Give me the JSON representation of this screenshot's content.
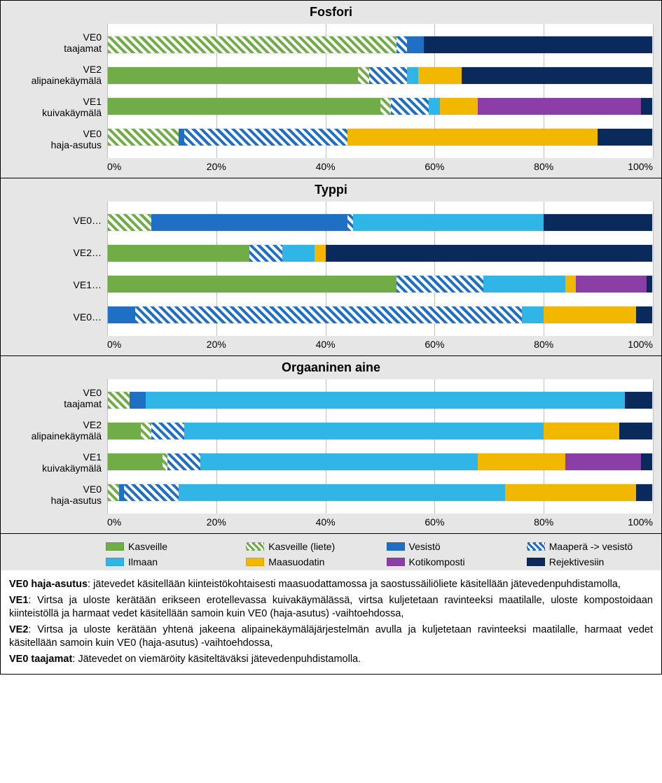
{
  "colors": {
    "kasveille": "#70ad47",
    "kasveille_liete": "hatch-green",
    "vesisto": "#1f6fc4",
    "maapera_vesisto": "hatch-blue",
    "ilmaan": "#2fb5e6",
    "maasuodatin": "#f2b800",
    "kotikomposti": "#8b3fa6",
    "rejektivesiin": "#0a2a5c",
    "panel_bg": "#e6e6e6",
    "grid": "#bfbfbf"
  },
  "axis": {
    "ticks": [
      "0%",
      "20%",
      "40%",
      "60%",
      "80%",
      "100%"
    ]
  },
  "legend": [
    {
      "key": "kasveille",
      "label": "Kasveille"
    },
    {
      "key": "kasveille_liete",
      "label": "Kasveille (liete)"
    },
    {
      "key": "vesisto",
      "label": "Vesistö"
    },
    {
      "key": "maapera_vesisto",
      "label": "Maaperä -> vesistö"
    },
    {
      "key": "ilmaan",
      "label": "Ilmaan"
    },
    {
      "key": "maasuodatin",
      "label": "Maasuodatin"
    },
    {
      "key": "kotikomposti",
      "label": "Kotikomposti"
    },
    {
      "key": "rejektivesiin",
      "label": "Rejektivesiin"
    }
  ],
  "charts": [
    {
      "title": "Fosfori",
      "rows": [
        {
          "label": [
            "VE0",
            "taajamat"
          ],
          "segs": [
            {
              "k": "kasveille_liete",
              "v": 53
            },
            {
              "k": "maapera_vesisto",
              "v": 2
            },
            {
              "k": "vesisto",
              "v": 3
            },
            {
              "k": "rejektivesiin",
              "v": 42
            }
          ]
        },
        {
          "label": [
            "VE2",
            "alipainekäymälä"
          ],
          "segs": [
            {
              "k": "kasveille",
              "v": 46
            },
            {
              "k": "kasveille_liete",
              "v": 2
            },
            {
              "k": "maapera_vesisto",
              "v": 7
            },
            {
              "k": "ilmaan",
              "v": 2
            },
            {
              "k": "maasuodatin",
              "v": 8
            },
            {
              "k": "rejektivesiin",
              "v": 35
            }
          ]
        },
        {
          "label": [
            "VE1",
            "kuivakäymälä"
          ],
          "segs": [
            {
              "k": "kasveille",
              "v": 50
            },
            {
              "k": "kasveille_liete",
              "v": 2
            },
            {
              "k": "maapera_vesisto",
              "v": 7
            },
            {
              "k": "ilmaan",
              "v": 2
            },
            {
              "k": "maasuodatin",
              "v": 7
            },
            {
              "k": "kotikomposti",
              "v": 30
            },
            {
              "k": "rejektivesiin",
              "v": 2
            }
          ]
        },
        {
          "label": [
            "VE0",
            "haja-asutus"
          ],
          "segs": [
            {
              "k": "kasveille_liete",
              "v": 13
            },
            {
              "k": "vesisto",
              "v": 1
            },
            {
              "k": "maapera_vesisto",
              "v": 30
            },
            {
              "k": "maasuodatin",
              "v": 46
            },
            {
              "k": "rejektivesiin",
              "v": 10
            }
          ]
        }
      ]
    },
    {
      "title": "Typpi",
      "rows": [
        {
          "label": [
            "VE0…"
          ],
          "segs": [
            {
              "k": "kasveille_liete",
              "v": 8
            },
            {
              "k": "vesisto",
              "v": 36
            },
            {
              "k": "maapera_vesisto",
              "v": 1
            },
            {
              "k": "ilmaan",
              "v": 35
            },
            {
              "k": "rejektivesiin",
              "v": 20
            }
          ]
        },
        {
          "label": [
            "VE2…"
          ],
          "segs": [
            {
              "k": "kasveille",
              "v": 26
            },
            {
              "k": "maapera_vesisto",
              "v": 6
            },
            {
              "k": "ilmaan",
              "v": 6
            },
            {
              "k": "maasuodatin",
              "v": 2
            },
            {
              "k": "rejektivesiin",
              "v": 60
            }
          ]
        },
        {
          "label": [
            "VE1…"
          ],
          "segs": [
            {
              "k": "kasveille",
              "v": 53
            },
            {
              "k": "maapera_vesisto",
              "v": 16
            },
            {
              "k": "ilmaan",
              "v": 15
            },
            {
              "k": "maasuodatin",
              "v": 2
            },
            {
              "k": "kotikomposti",
              "v": 13
            },
            {
              "k": "rejektivesiin",
              "v": 1
            }
          ]
        },
        {
          "label": [
            "VE0…"
          ],
          "segs": [
            {
              "k": "vesisto",
              "v": 5
            },
            {
              "k": "maapera_vesisto",
              "v": 71
            },
            {
              "k": "ilmaan",
              "v": 4
            },
            {
              "k": "maasuodatin",
              "v": 17
            },
            {
              "k": "rejektivesiin",
              "v": 3
            }
          ]
        }
      ]
    },
    {
      "title": "Orgaaninen aine",
      "rows": [
        {
          "label": [
            "VE0",
            "taajamat"
          ],
          "segs": [
            {
              "k": "kasveille_liete",
              "v": 4
            },
            {
              "k": "vesisto",
              "v": 3
            },
            {
              "k": "ilmaan",
              "v": 88
            },
            {
              "k": "rejektivesiin",
              "v": 5
            }
          ]
        },
        {
          "label": [
            "VE2",
            "alipainekäymälä"
          ],
          "segs": [
            {
              "k": "kasveille",
              "v": 6
            },
            {
              "k": "kasveille_liete",
              "v": 2
            },
            {
              "k": "maapera_vesisto",
              "v": 6
            },
            {
              "k": "ilmaan",
              "v": 66
            },
            {
              "k": "maasuodatin",
              "v": 14
            },
            {
              "k": "rejektivesiin",
              "v": 6
            }
          ]
        },
        {
          "label": [
            "VE1",
            "kuivakäymälä"
          ],
          "segs": [
            {
              "k": "kasveille",
              "v": 10
            },
            {
              "k": "kasveille_liete",
              "v": 1
            },
            {
              "k": "maapera_vesisto",
              "v": 6
            },
            {
              "k": "ilmaan",
              "v": 51
            },
            {
              "k": "maasuodatin",
              "v": 16
            },
            {
              "k": "kotikomposti",
              "v": 14
            },
            {
              "k": "rejektivesiin",
              "v": 2
            }
          ]
        },
        {
          "label": [
            "VE0",
            "haja-asutus"
          ],
          "segs": [
            {
              "k": "kasveille_liete",
              "v": 2
            },
            {
              "k": "vesisto",
              "v": 1
            },
            {
              "k": "maapera_vesisto",
              "v": 10
            },
            {
              "k": "ilmaan",
              "v": 60
            },
            {
              "k": "maasuodatin",
              "v": 24
            },
            {
              "k": "rejektivesiin",
              "v": 3
            }
          ]
        }
      ]
    }
  ],
  "caption": {
    "p1_b": "VE0 haja-asutus",
    "p1": ": jätevedet käsitellään kiinteistökohtaisesti maasuodattamossa ja saostussäiliöliete käsitellään jätevedenpuhdistamolla,",
    "p2_b": "VE1",
    "p2": ": Virtsa ja uloste kerätään erikseen erotellevassa kuivakäymälässä, virtsa kuljetetaan ravinteeksi maatilalle, uloste kompostoidaan kiinteistöllä ja harmaat vedet käsitellään samoin kuin VE0 (haja-asutus) -vaihtoehdossa,",
    "p3_b": "VE2",
    "p3": ": Virtsa ja uloste kerätään yhtenä jakeena alipainekäymäläjärjestelmän avulla ja kuljetetaan ravinteeksi maatilalle, harmaat vedet käsitellään samoin kuin VE0 (haja-asutus) -vaihtoehdossa,",
    "p4_b": "VE0 taajamat",
    "p4": ": Jätevedet on viemäröity käsiteltäväksi jätevedenpuhdistamolla."
  }
}
